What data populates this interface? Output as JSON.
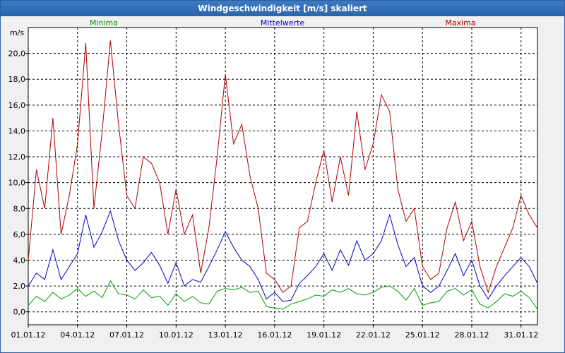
{
  "window": {
    "title": "Windgeschwindigkeit [m/s] skaliert"
  },
  "chart_data": {
    "type": "line",
    "title": "Windgeschwindigkeit [m/s] skaliert",
    "ylabel": "m/s",
    "xlabel": "",
    "ylim": [
      -1.0,
      22.0
    ],
    "yticks": [
      0,
      2,
      4,
      6,
      8,
      10,
      12,
      14,
      16,
      18,
      20
    ],
    "ytick_labels": [
      "0,0",
      "2,0",
      "4,0",
      "6,0",
      "8,0",
      "10,0",
      "12,0",
      "14,0",
      "16,0",
      "18,0",
      "20,0"
    ],
    "xlim": [
      0,
      31
    ],
    "xticks": [
      0,
      3,
      6,
      9,
      12,
      15,
      18,
      21,
      24,
      27,
      30
    ],
    "xtick_labels": [
      "01.01.12",
      "04.01.12",
      "07.01.12",
      "10.01.12",
      "13.01.12",
      "16.01.12",
      "19.01.12",
      "22.01.12",
      "25.01.12",
      "28.01.12",
      "31.01.12"
    ],
    "grid": true,
    "legend_placement": "top",
    "series": [
      {
        "name": "Minima",
        "color": "#00a000",
        "x": [
          0,
          0.5,
          1,
          1.5,
          2,
          2.5,
          3,
          3.5,
          4,
          4.5,
          5,
          5.5,
          6,
          6.5,
          7,
          7.5,
          8,
          8.5,
          9,
          9.5,
          10,
          10.5,
          11,
          11.5,
          12,
          12.5,
          13,
          13.5,
          14,
          14.5,
          15,
          15.5,
          16,
          16.5,
          17,
          17.5,
          18,
          18.5,
          19,
          19.5,
          20,
          20.5,
          21,
          21.5,
          22,
          22.5,
          23,
          23.5,
          24,
          24.5,
          25,
          25.5,
          26,
          26.5,
          27,
          27.5,
          28,
          28.5,
          29,
          29.5,
          30,
          30.5,
          31
        ],
        "values": [
          0.5,
          1.2,
          0.8,
          1.5,
          1.0,
          1.3,
          1.8,
          1.2,
          1.6,
          1.1,
          2.4,
          1.4,
          1.3,
          1.0,
          1.7,
          1.1,
          1.2,
          0.5,
          1.4,
          0.8,
          1.2,
          0.7,
          0.6,
          1.6,
          1.8,
          1.7,
          1.9,
          1.5,
          1.6,
          0.4,
          0.3,
          0.2,
          0.6,
          0.8,
          1.0,
          1.3,
          1.2,
          1.7,
          1.5,
          1.8,
          1.4,
          1.3,
          1.5,
          1.9,
          2.0,
          1.6,
          0.9,
          1.8,
          0.5,
          0.7,
          0.8,
          1.6,
          1.8,
          1.3,
          1.7,
          0.6,
          0.3,
          0.8,
          1.4,
          1.2,
          1.6,
          1.1,
          0.2
        ]
      },
      {
        "name": "Mittelwerte",
        "color": "#0000c0",
        "x": [
          0,
          0.5,
          1,
          1.5,
          2,
          2.5,
          3,
          3.5,
          4,
          4.5,
          5,
          5.5,
          6,
          6.5,
          7,
          7.5,
          8,
          8.5,
          9,
          9.5,
          10,
          10.5,
          11,
          11.5,
          12,
          12.5,
          13,
          13.5,
          14,
          14.5,
          15,
          15.5,
          16,
          16.5,
          17,
          17.5,
          18,
          18.5,
          19,
          19.5,
          20,
          20.5,
          21,
          21.5,
          22,
          22.5,
          23,
          23.5,
          24,
          24.5,
          25,
          25.5,
          26,
          26.5,
          27,
          27.5,
          28,
          28.5,
          29,
          29.5,
          30,
          30.5,
          31
        ],
        "values": [
          2.0,
          3.0,
          2.5,
          4.8,
          2.5,
          3.5,
          4.5,
          7.5,
          5.0,
          6.2,
          7.8,
          5.5,
          4.0,
          3.2,
          3.8,
          4.6,
          3.6,
          2.2,
          3.8,
          2.0,
          2.5,
          2.3,
          3.5,
          4.8,
          6.2,
          5.0,
          4.0,
          3.5,
          2.5,
          1.0,
          1.5,
          0.8,
          0.9,
          2.2,
          2.8,
          3.5,
          4.5,
          3.2,
          4.8,
          3.6,
          5.5,
          4.0,
          4.5,
          5.5,
          7.5,
          5.2,
          3.5,
          4.2,
          2.0,
          1.5,
          2.0,
          3.2,
          4.5,
          2.8,
          4.0,
          2.0,
          1.0,
          2.0,
          2.8,
          3.5,
          4.2,
          3.5,
          2.2
        ]
      },
      {
        "name": "Maxima",
        "color": "#b00000",
        "x": [
          0,
          0.5,
          1,
          1.5,
          2,
          2.5,
          3,
          3.5,
          4,
          4.5,
          5,
          5.5,
          6,
          6.5,
          7,
          7.5,
          8,
          8.5,
          9,
          9.5,
          10,
          10.5,
          11,
          11.5,
          12,
          12.5,
          13,
          13.5,
          14,
          14.5,
          15,
          15.5,
          16,
          16.5,
          17,
          17.5,
          18,
          18.5,
          19,
          19.5,
          20,
          20.5,
          21,
          21.5,
          22,
          22.5,
          23,
          23.5,
          24,
          24.5,
          25,
          25.5,
          26,
          26.5,
          27,
          27.5,
          28,
          28.5,
          29,
          29.5,
          30,
          30.5,
          31
        ],
        "values": [
          4.0,
          11.0,
          8.0,
          15.0,
          6.0,
          9.0,
          13.0,
          20.8,
          8.0,
          14.0,
          21.0,
          14.5,
          9.0,
          8.0,
          12.0,
          11.5,
          10.0,
          6.0,
          9.5,
          6.0,
          7.5,
          3.0,
          6.5,
          12.0,
          18.4,
          13.0,
          14.5,
          10.5,
          8.0,
          3.0,
          2.5,
          1.5,
          2.0,
          6.5,
          7.0,
          10.0,
          12.5,
          8.5,
          12.0,
          9.0,
          15.5,
          11.0,
          13.0,
          16.8,
          15.5,
          9.5,
          7.0,
          8.0,
          3.5,
          2.5,
          3.0,
          6.5,
          8.5,
          5.5,
          7.0,
          3.5,
          1.5,
          3.5,
          5.0,
          6.5,
          9.0,
          7.5,
          6.5
        ]
      }
    ]
  }
}
